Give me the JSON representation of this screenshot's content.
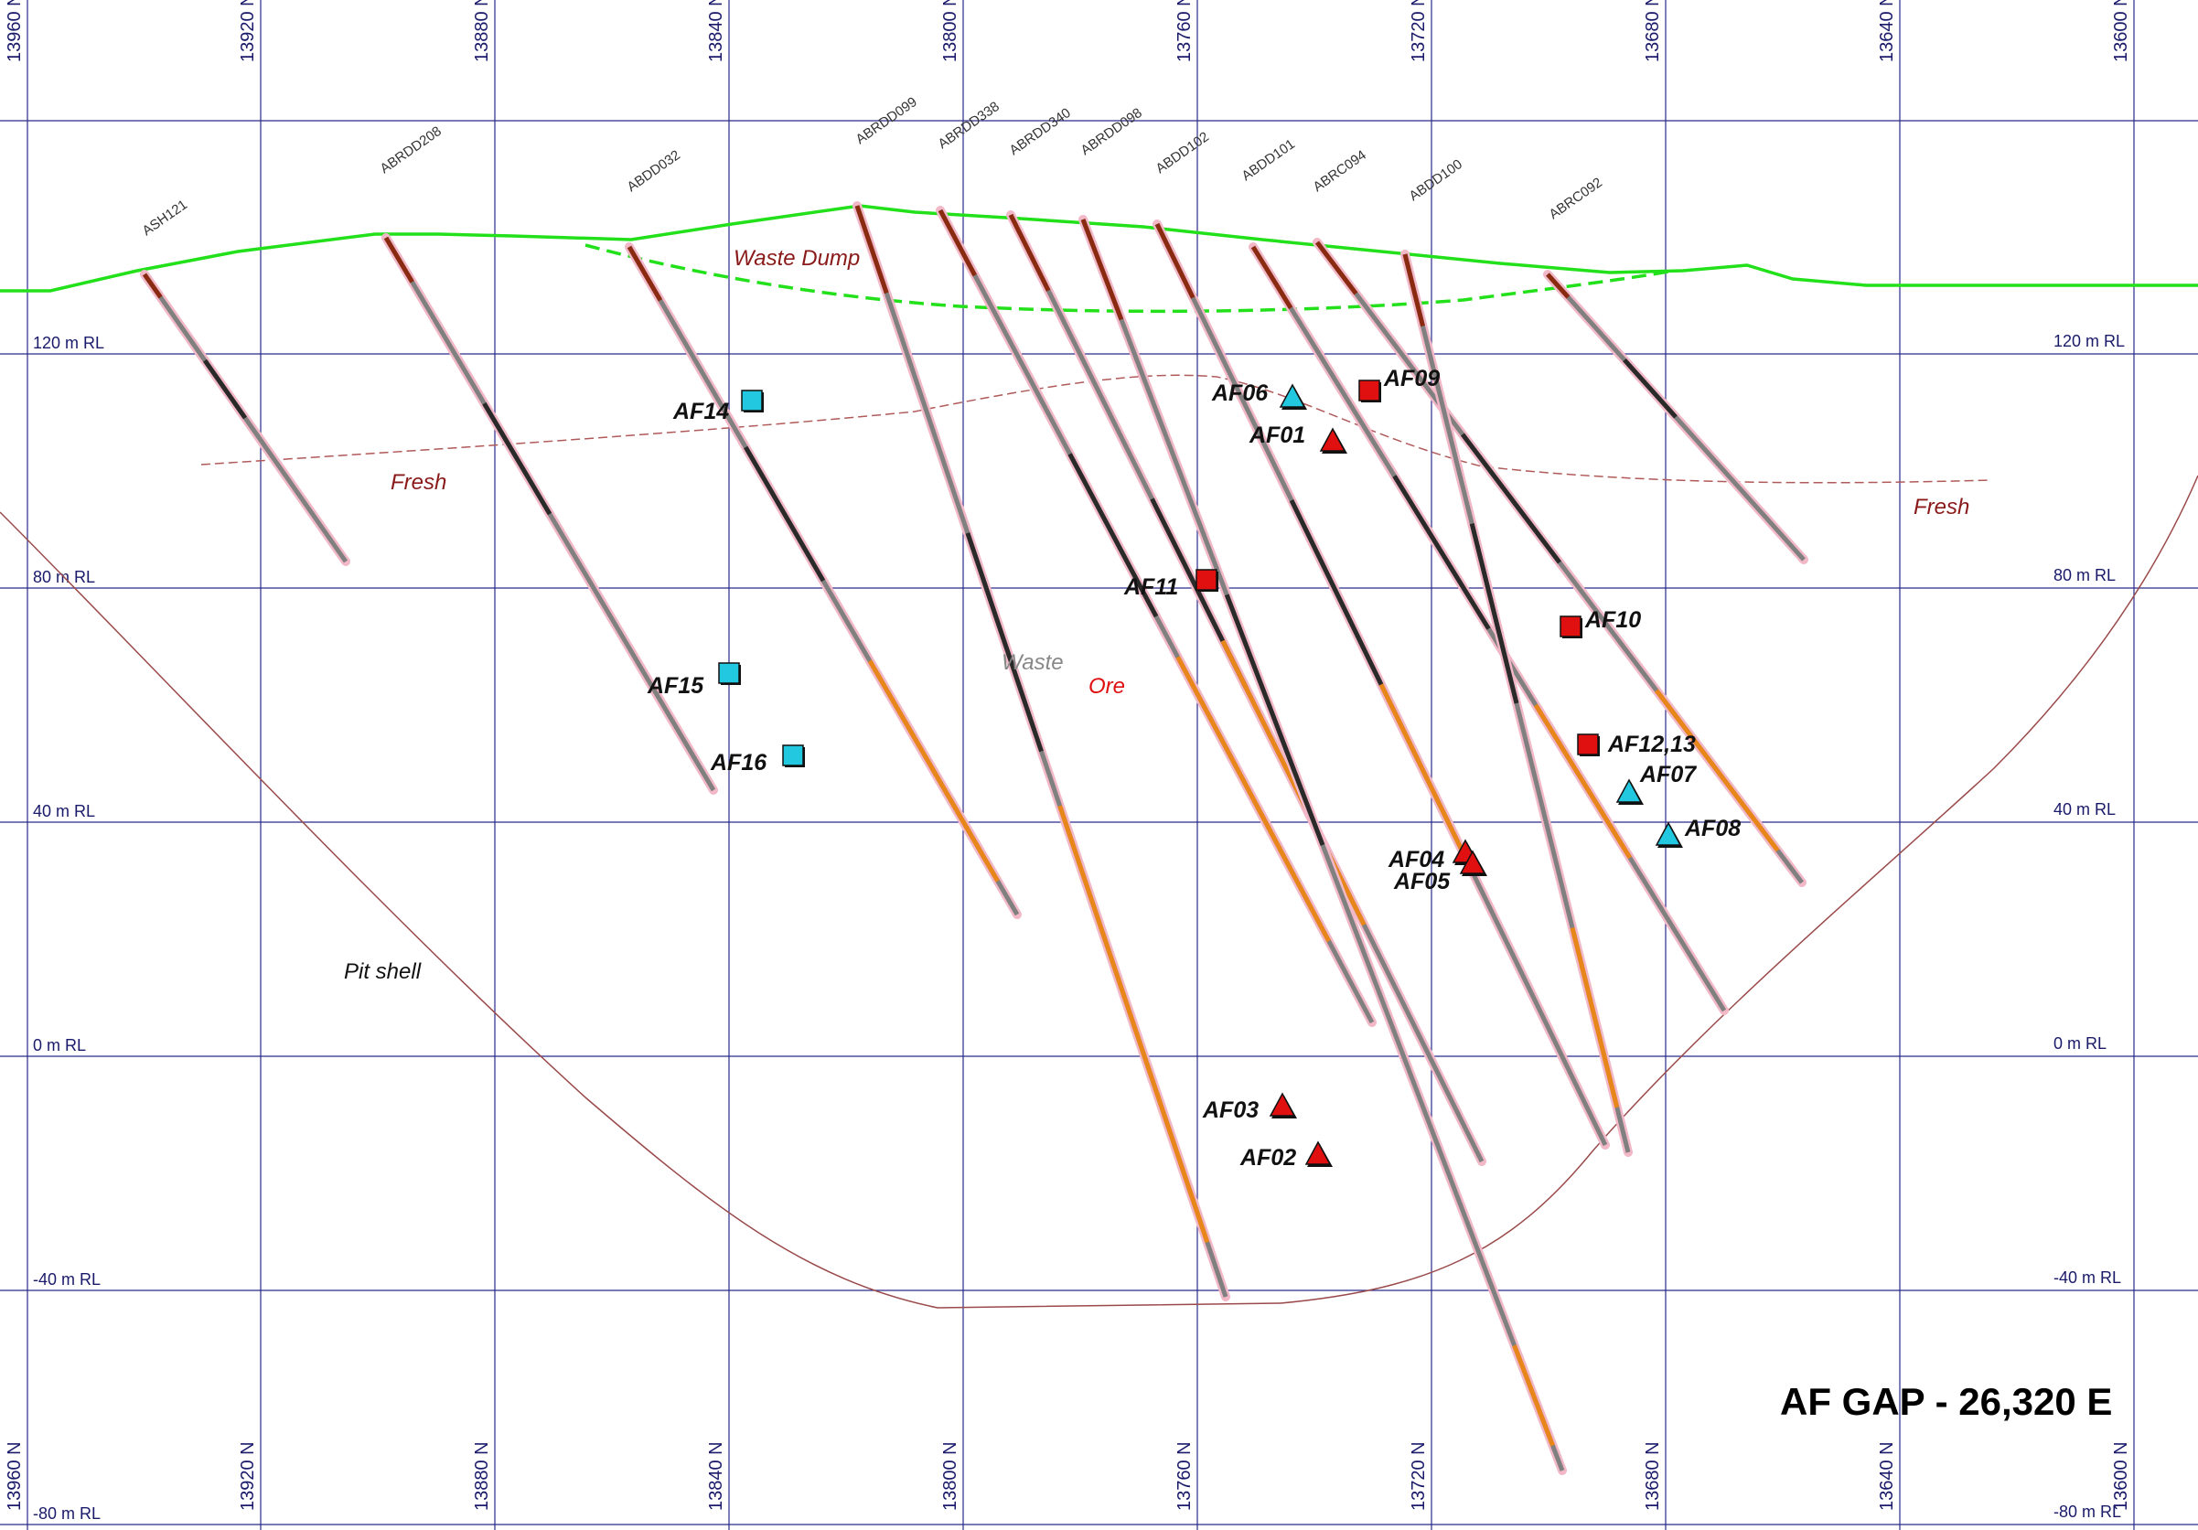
{
  "section_title": "AF GAP  -  26,320 E",
  "northings": [
    "13960 N",
    "13920 N",
    "13880 N",
    "13840 N",
    "13800 N",
    "13760 N",
    "13720 N",
    "13680 N",
    "13640 N",
    "13600 N"
  ],
  "rls": [
    "120 m RL",
    "80 m RL",
    "40 m RL",
    "0 m RL",
    "-40 m RL",
    "-80 m RL"
  ],
  "zones": {
    "waste_dump": "Waste Dump",
    "fresh_left": "Fresh",
    "fresh_right": "Fresh",
    "waste": "Waste",
    "ore": "Ore",
    "pit_shell": "Pit shell"
  },
  "holes": [
    "ASH121",
    "ABRDD208",
    "ABDD032",
    "ABRDD099",
    "ABRDD338",
    "ABRDD340",
    "ABRDD098",
    "ABDD102",
    "ABDD101",
    "ABRC094",
    "ABDD100",
    "ABRC092"
  ],
  "markers": [
    {
      "label": "AF14",
      "shape": "square",
      "color": "#22c8e0"
    },
    {
      "label": "AF15",
      "shape": "square",
      "color": "#22c8e0"
    },
    {
      "label": "AF16",
      "shape": "square",
      "color": "#22c8e0"
    },
    {
      "label": "AF06",
      "shape": "triangle",
      "color": "#22c8e0"
    },
    {
      "label": "AF09",
      "shape": "square",
      "color": "#e01010"
    },
    {
      "label": "AF01",
      "shape": "triangle",
      "color": "#e01010"
    },
    {
      "label": "AF11",
      "shape": "square",
      "color": "#e01010"
    },
    {
      "label": "AF10",
      "shape": "square",
      "color": "#e01010"
    },
    {
      "label": "AF12,13",
      "shape": "square",
      "color": "#e01010"
    },
    {
      "label": "AF07",
      "shape": "triangle",
      "color": "#22c8e0"
    },
    {
      "label": "AF08",
      "shape": "triangle",
      "color": "#22c8e0"
    },
    {
      "label": "AF04",
      "shape": "triangle",
      "color": "#e01010"
    },
    {
      "label": "AF05",
      "shape": "triangle",
      "color": "#e01010"
    },
    {
      "label": "AF03",
      "shape": "triangle",
      "color": "#e01010"
    },
    {
      "label": "AF02",
      "shape": "triangle",
      "color": "#e01010"
    }
  ],
  "colors": {
    "grid": "#2a2a8a",
    "topography": "#22e01a",
    "pit_shell": "#9a4a4a",
    "fresh_boundary": "#b05a5a",
    "waste_dump_text": "#8a1a1a",
    "ore_text": "#e01010",
    "waste_text": "#888888",
    "drill_hole": "#808080",
    "ore_interval": "#e8861a",
    "hole_collar": "#8a2a10"
  }
}
